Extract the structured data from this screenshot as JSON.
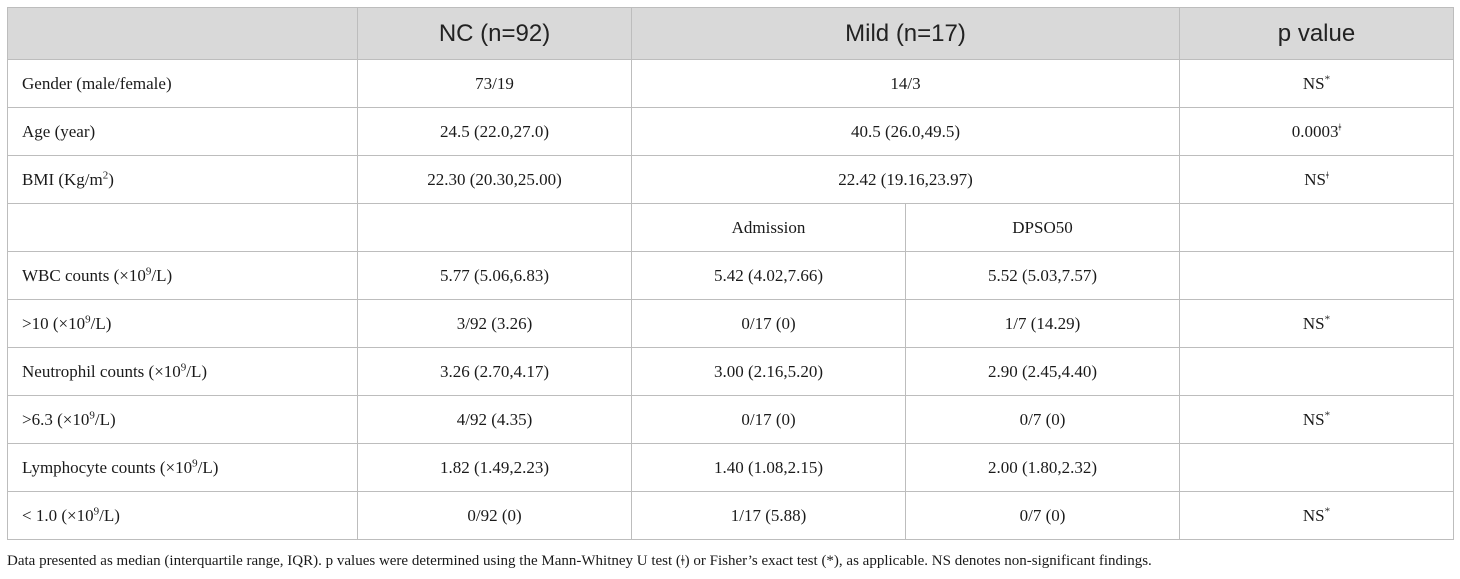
{
  "table": {
    "headers": {
      "blank": "",
      "nc": "NC (n=92)",
      "mild": "Mild (n=17)",
      "p": "p value"
    },
    "rows": [
      {
        "label": "Gender (male/female)",
        "nc": "73/19",
        "mild": "14/3",
        "p_text": "NS",
        "p_sup": "*"
      },
      {
        "label": "Age (year)",
        "nc": "24.5 (22.0,27.0)",
        "mild": "40.5 (26.0,49.5)",
        "p_text": "0.0003",
        "p_sup": "ǂ"
      },
      {
        "label_pre": "BMI (Kg/m",
        "label_sup": "2",
        "label_post": ")",
        "nc": "22.30 (20.30,25.00)",
        "mild": "22.42 (19.16,23.97)",
        "p_text": "NS",
        "p_sup": "ǂ"
      }
    ],
    "subheader": {
      "admission": "Admission",
      "dpso50": "DPSO50"
    },
    "detail_rows": [
      {
        "label_pre": "WBC counts (×10",
        "label_sup": "9",
        "label_post": "/L)",
        "nc": "5.77 (5.06,6.83)",
        "admission": "5.42 (4.02,7.66)",
        "dpso50": "5.52 (5.03,7.57)",
        "p_text": "",
        "p_sup": ""
      },
      {
        "label_pre": ">10 (×10",
        "label_sup": "9",
        "label_post": "/L)",
        "nc": "3/92 (3.26)",
        "admission": "0/17 (0)",
        "dpso50": "1/7 (14.29)",
        "p_text": "NS",
        "p_sup": "*"
      },
      {
        "label_pre": "Neutrophil counts (×10",
        "label_sup": "9",
        "label_post": "/L)",
        "nc": "3.26 (2.70,4.17)",
        "admission": "3.00 (2.16,5.20)",
        "dpso50": "2.90 (2.45,4.40)",
        "p_text": "",
        "p_sup": ""
      },
      {
        "label_pre": ">6.3 (×10",
        "label_sup": "9",
        "label_post": "/L)",
        "nc": "4/92 (4.35)",
        "admission": "0/17 (0)",
        "dpso50": "0/7 (0)",
        "p_text": "NS",
        "p_sup": "*"
      },
      {
        "label_pre": "Lymphocyte counts (×10",
        "label_sup": "9",
        "label_post": "/L)",
        "nc": "1.82 (1.49,2.23)",
        "admission": "1.40 (1.08,2.15)",
        "dpso50": "2.00 (1.80,2.32)",
        "p_text": "",
        "p_sup": ""
      },
      {
        "label_pre": "< 1.0 (×10",
        "label_sup": "9",
        "label_post": "/L)",
        "nc": "0/92 (0)",
        "admission": "1/17 (5.88)",
        "dpso50": "0/7 (0)",
        "p_text": "NS",
        "p_sup": "*"
      }
    ]
  },
  "footnote": "Data presented as median (interquartile range, IQR). p values were determined using the Mann-Whitney U test (ǂ) or Fisher’s exact test (*), as applicable. NS denotes non-significant findings."
}
